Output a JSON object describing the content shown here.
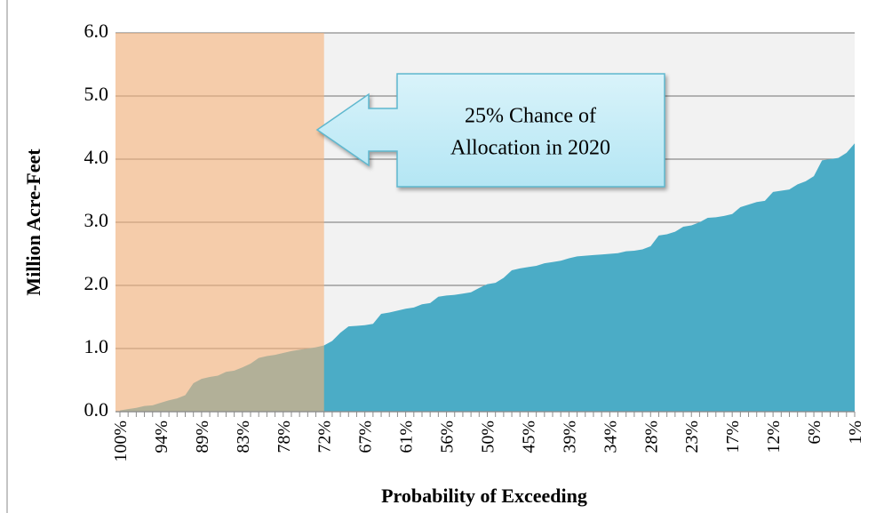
{
  "chart_data": {
    "type": "area",
    "x_label": "Probability of Exceeding",
    "y_label": "Million Acre-Feet",
    "annotation": [
      "25% Chance of",
      "Allocation in 2020"
    ],
    "categories": [
      "100%",
      null,
      null,
      null,
      null,
      "94%",
      null,
      null,
      null,
      null,
      "89%",
      null,
      null,
      null,
      null,
      "83%",
      null,
      null,
      null,
      null,
      "78%",
      null,
      null,
      null,
      null,
      "72%",
      null,
      null,
      null,
      null,
      "67%",
      null,
      null,
      null,
      null,
      "61%",
      null,
      null,
      null,
      null,
      "56%",
      null,
      null,
      null,
      null,
      "50%",
      null,
      null,
      null,
      null,
      "45%",
      null,
      null,
      null,
      null,
      "39%",
      null,
      null,
      null,
      null,
      "34%",
      null,
      null,
      null,
      null,
      "28%",
      null,
      null,
      null,
      null,
      "23%",
      null,
      null,
      null,
      null,
      "17%",
      null,
      null,
      null,
      null,
      "12%",
      null,
      null,
      null,
      null,
      "6%",
      null,
      null,
      null,
      null,
      "1%"
    ],
    "values": [
      0.02,
      0.04,
      0.06,
      0.09,
      0.1,
      0.14,
      0.18,
      0.21,
      0.26,
      0.45,
      0.52,
      0.55,
      0.57,
      0.63,
      0.65,
      0.7,
      0.76,
      0.85,
      0.88,
      0.9,
      0.93,
      0.96,
      0.98,
      1.0,
      1.02,
      1.05,
      1.12,
      1.25,
      1.35,
      1.36,
      1.37,
      1.39,
      1.55,
      1.57,
      1.6,
      1.63,
      1.65,
      1.7,
      1.72,
      1.82,
      1.84,
      1.85,
      1.87,
      1.89,
      1.96,
      2.02,
      2.04,
      2.12,
      2.24,
      2.27,
      2.29,
      2.31,
      2.35,
      2.37,
      2.39,
      2.43,
      2.46,
      2.47,
      2.48,
      2.49,
      2.5,
      2.51,
      2.54,
      2.55,
      2.57,
      2.62,
      2.79,
      2.81,
      2.85,
      2.93,
      2.95,
      3.0,
      3.07,
      3.08,
      3.1,
      3.13,
      3.24,
      3.28,
      3.32,
      3.34,
      3.48,
      3.5,
      3.52,
      3.6,
      3.65,
      3.73,
      3.98,
      4.0,
      4.02,
      4.1,
      4.25
    ],
    "color": "#4bacc6",
    "shaded_range": [
      "100%",
      "72%"
    ],
    "shade_color": "#f7b37a",
    "ylim": [
      0,
      6
    ],
    "yticks": [
      {
        "value": 0,
        "label": "0.0"
      },
      {
        "value": 1,
        "label": "1.0"
      },
      {
        "value": 2,
        "label": "2.0"
      },
      {
        "value": 3,
        "label": "3.0"
      },
      {
        "value": 4,
        "label": "4.0"
      },
      {
        "value": 5,
        "label": "5.0"
      },
      {
        "value": 6,
        "label": "6.0"
      }
    ],
    "grid": true
  }
}
